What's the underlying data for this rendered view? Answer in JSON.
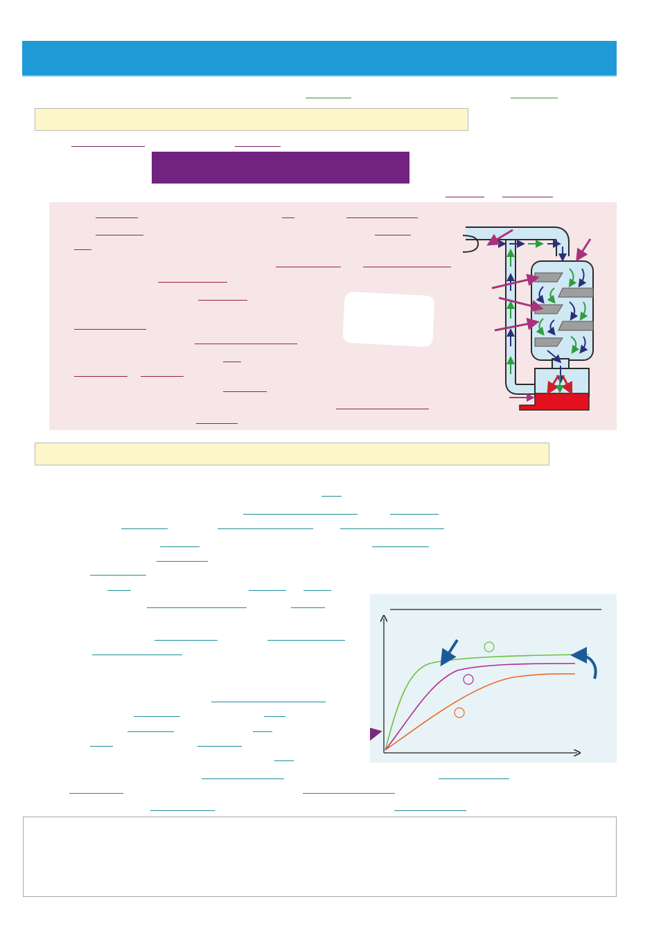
{
  "header": {
    "title": ""
  },
  "sections": [
    {
      "title": ""
    },
    {
      "title": ""
    }
  ],
  "highlight_box": {
    "text": ""
  },
  "note_box": {
    "text": ""
  },
  "diagram": {
    "labels": []
  },
  "graph": {
    "title": "",
    "xlabel": "",
    "ylabel": "",
    "curve_labels": []
  },
  "colors": {
    "header": "#1e9bd7",
    "section_fill": "#fdf6c8",
    "highlight": "#722281",
    "panel_pink": "#f6e6e7",
    "panel_blue": "#e7f3f6",
    "molten_metal": "#e3111f",
    "curve_green": "#6cbf3d",
    "curve_magenta": "#b2288e",
    "curve_orange": "#ec6a24"
  }
}
